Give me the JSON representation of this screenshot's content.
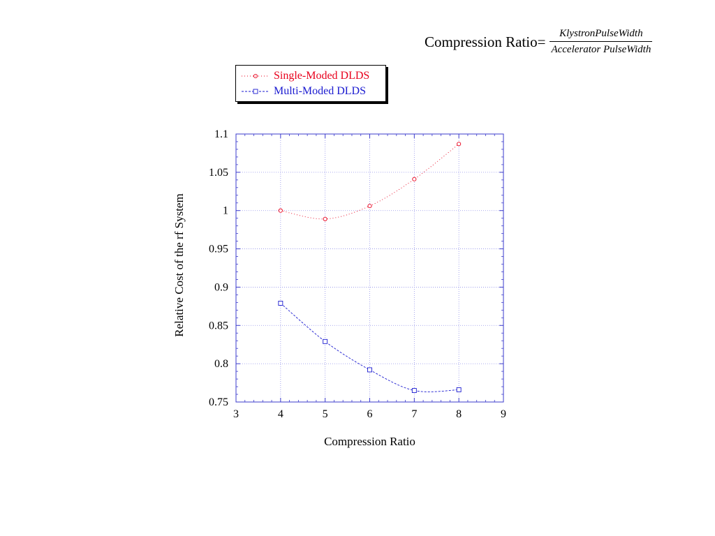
{
  "formula": {
    "lhs": "Compression Ratio=",
    "numerator": "KlystronPulseWidth",
    "denominator": "Accelerator PulseWidth"
  },
  "chart_data": {
    "type": "line",
    "title": "",
    "xlabel": "Compression Ratio",
    "ylabel": "Relative Cost of the rf System",
    "xlim": [
      3,
      9
    ],
    "ylim": [
      0.75,
      1.1
    ],
    "x_ticks": [
      "3",
      "4",
      "5",
      "6",
      "7",
      "8",
      "9"
    ],
    "y_ticks": [
      "0.75",
      "0.8",
      "0.85",
      "0.9",
      "0.95",
      "1",
      "1.05",
      "1.1"
    ],
    "grid": true,
    "legend_position": "top-left, above plot",
    "series": [
      {
        "name": "Single-Moded DLDS",
        "marker": "circle",
        "color": "#e8001c",
        "x": [
          4,
          5,
          6,
          7,
          8
        ],
        "y": [
          1.0,
          0.989,
          1.006,
          1.041,
          1.087
        ]
      },
      {
        "name": "Multi-Moded DLDS",
        "marker": "square",
        "color": "#1a1ad0",
        "x": [
          4,
          5,
          6,
          7,
          8
        ],
        "y": [
          0.879,
          0.829,
          0.792,
          0.765,
          0.766
        ]
      }
    ]
  }
}
